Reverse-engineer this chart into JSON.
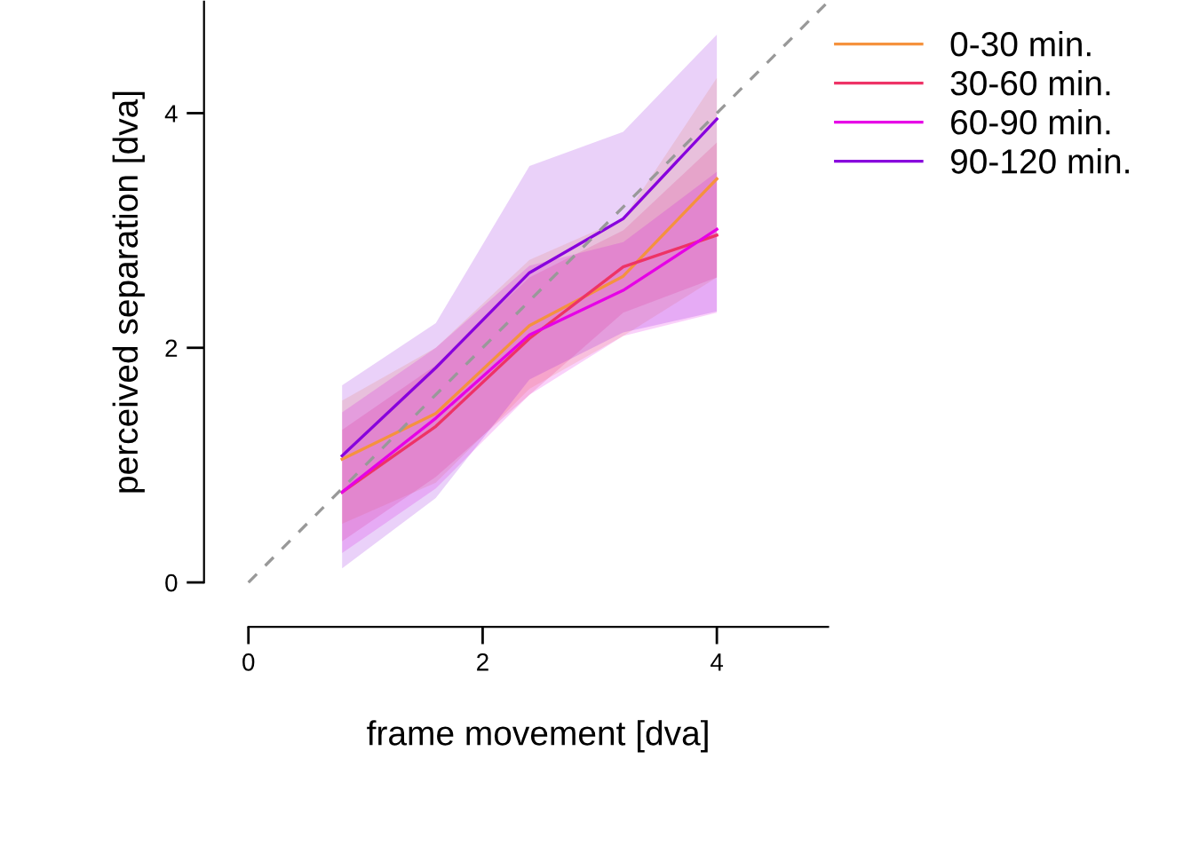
{
  "chart_data": {
    "type": "line",
    "xlabel": "frame movement [dva]",
    "ylabel": "perceived separation [dva]",
    "x": [
      0.8,
      1.6,
      2.4,
      3.2,
      4.0
    ],
    "xlim": [
      0,
      4.95
    ],
    "ylim": [
      0,
      4.95
    ],
    "xticks": [
      0,
      2,
      4
    ],
    "yticks": [
      0,
      2,
      4
    ],
    "legend": "top right",
    "grid": false,
    "marker": "none",
    "series": [
      {
        "name": "0-30 min.",
        "color": "#f5923e",
        "values": [
          1.05,
          1.44,
          2.19,
          2.61,
          3.44
        ],
        "lower": [
          0.5,
          0.85,
          1.65,
          2.1,
          2.6
        ],
        "upper": [
          1.55,
          2.0,
          2.75,
          3.1,
          4.3
        ]
      },
      {
        "name": "30-60 min.",
        "color": "#ee3366",
        "values": [
          0.77,
          1.33,
          2.08,
          2.69,
          2.96
        ],
        "lower": [
          0.35,
          0.9,
          1.6,
          2.3,
          2.6
        ],
        "upper": [
          1.3,
          1.85,
          2.6,
          3.0,
          3.75
        ]
      },
      {
        "name": "60-90 min.",
        "color": "#e600e6",
        "values": [
          0.77,
          1.4,
          2.11,
          2.49,
          3.01
        ],
        "lower": [
          0.25,
          0.8,
          1.6,
          2.1,
          2.3
        ],
        "upper": [
          1.45,
          2.0,
          2.7,
          2.9,
          3.5
        ]
      },
      {
        "name": "90-120 min.",
        "color": "#8800dd",
        "values": [
          1.08,
          1.83,
          2.64,
          3.1,
          3.95
        ],
        "lower": [
          0.12,
          0.72,
          1.73,
          2.13,
          2.31
        ],
        "upper": [
          1.68,
          2.21,
          3.55,
          3.84,
          4.67
        ]
      },
      {
        "type": "line",
        "color": "#999999",
        "line_style": "dashed",
        "x": [
          0,
          4.95
        ],
        "values": [
          0,
          4.95
        ]
      }
    ]
  }
}
